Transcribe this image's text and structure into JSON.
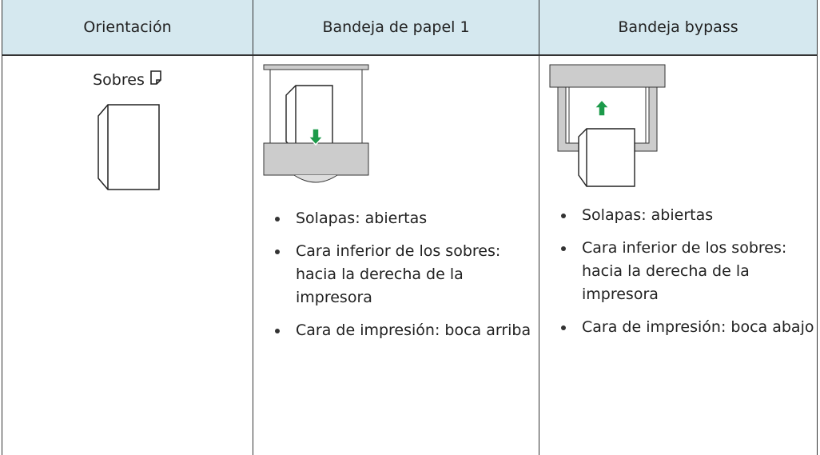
{
  "header": {
    "col1": "Orientación",
    "col2": "Bandeja de papel 1",
    "col3": "Bandeja bypass"
  },
  "row": {
    "orientation": "Sobres",
    "tray1": [
      "Solapas: abiertas",
      "Cara inferior de los sobres: hacia la derecha de la impresora",
      "Cara de impresión: boca arriba"
    ],
    "bypass": [
      "Solapas: abiertas",
      "Cara inferior de los sobres: hacia la derecha de la impresora",
      "Cara de impresión: boca abajo"
    ]
  }
}
